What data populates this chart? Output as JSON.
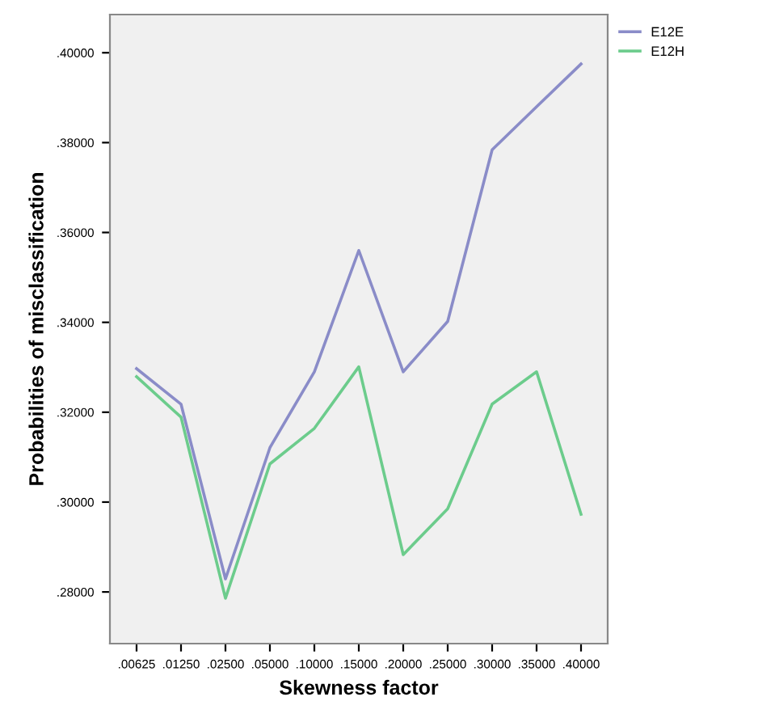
{
  "chart_data": {
    "type": "line",
    "xlabel": "Skewness factor",
    "ylabel": "Probabilities of misclassification",
    "categories": [
      ".00625",
      ".01250",
      ".02500",
      ".05000",
      ".10000",
      ".15000",
      ".20000",
      ".25000",
      ".30000",
      ".35000",
      ".40000"
    ],
    "series": [
      {
        "name": "E12E",
        "color": "#8a8cc8",
        "values": [
          0.3297,
          0.3218,
          0.2829,
          0.3121,
          0.329,
          0.356,
          0.329,
          0.3402,
          0.3784,
          0.388,
          0.3975
        ]
      },
      {
        "name": "E12H",
        "color": "#6ccc8c",
        "values": [
          0.3279,
          0.3189,
          0.2786,
          0.3085,
          0.3164,
          0.3301,
          0.2883,
          0.2985,
          0.3218,
          0.329,
          0.2973
        ]
      }
    ],
    "ylim": [
      0.2685,
      0.4085
    ],
    "yticks": [
      {
        "value": 0.28,
        "label": ".28000"
      },
      {
        "value": 0.3,
        "label": ".30000"
      },
      {
        "value": 0.32,
        "label": ".32000"
      },
      {
        "value": 0.34,
        "label": ".34000"
      },
      {
        "value": 0.36,
        "label": ".36000"
      },
      {
        "value": 0.38,
        "label": ".38000"
      },
      {
        "value": 0.4,
        "label": ".40000"
      }
    ],
    "grid": false,
    "legend": "top right",
    "marker": "none",
    "line_style": "solid"
  }
}
